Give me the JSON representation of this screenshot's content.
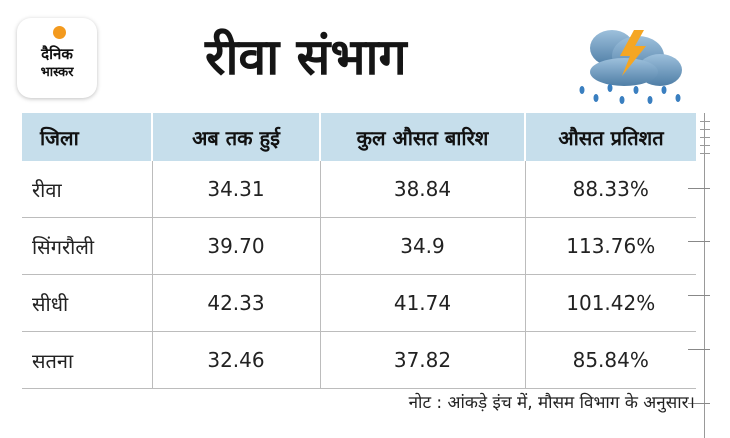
{
  "logo": {
    "line1": "दैनिक",
    "line2": "भास्कर"
  },
  "title": "रीवा संभाग",
  "weather_icon": "cloud-lightning-rain-icon",
  "colors": {
    "header_bg": "#c6deeb",
    "logo_sun": "#f39a1e",
    "lightning": "#f5a623",
    "cloud": "#7aa3c4",
    "rain": "#3a7fc0"
  },
  "table": {
    "headers": [
      "जिला",
      "अब तक हुई",
      "कुल औसत बारिश",
      "औसत प्रतिशत"
    ],
    "rows": [
      [
        "रीवा",
        "34.31",
        "38.84",
        "88.33%"
      ],
      [
        "सिंगरौली",
        "39.70",
        "34.9",
        "113.76%"
      ],
      [
        "सीधी",
        "42.33",
        "41.74",
        "101.42%"
      ],
      [
        "सतना",
        "32.46",
        "37.82",
        "85.84%"
      ]
    ]
  },
  "note": "नोट : आंकड़े इंच में, मौसम विभाग के अनुसार।"
}
